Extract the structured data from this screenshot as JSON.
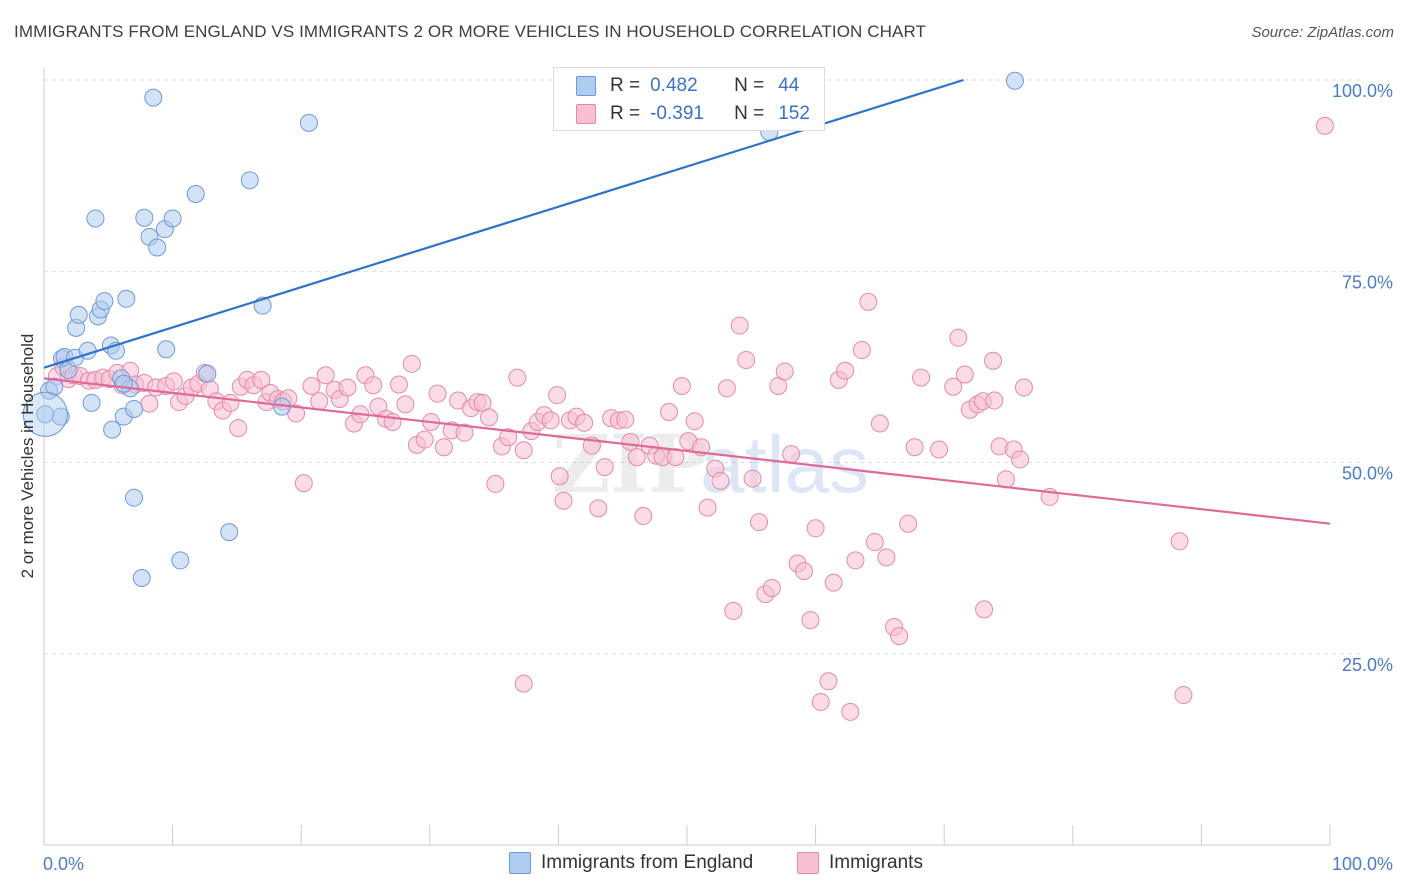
{
  "header": {
    "title": "IMMIGRANTS FROM ENGLAND VS IMMIGRANTS 2 OR MORE VEHICLES IN HOUSEHOLD CORRELATION CHART",
    "source": "Source: ZipAtlas.com"
  },
  "legend_top": {
    "rows": [
      {
        "r_label": "R =",
        "r_value": "0.482",
        "n_label": "N =",
        "n_value": "44"
      },
      {
        "r_label": "R =",
        "r_value": "-0.391",
        "n_label": "N =",
        "n_value": "152"
      }
    ]
  },
  "legend_bottom": {
    "series1": "Immigrants from England",
    "series2": "Immigrants"
  },
  "watermark": {
    "zip": "ZIP",
    "atlas": "atlas"
  },
  "colors": {
    "blue_fill": "#aecbf0",
    "blue_stroke": "#6f9ad8",
    "blue_line": "#2f72c8",
    "pink_fill": "#f7c0d2",
    "pink_stroke": "#e48aa9",
    "pink_line": "#e0699a",
    "grid": "#dddddd",
    "tick_text": "#4a7cc9"
  },
  "chart_data": {
    "type": "scatter",
    "title": "IMMIGRANTS FROM ENGLAND VS IMMIGRANTS 2 OR MORE VEHICLES IN HOUSEHOLD CORRELATION CHART",
    "xlabel": "",
    "ylabel": "2 or more Vehicles in Household",
    "xlim": [
      0,
      100
    ],
    "ylim": [
      0,
      100
    ],
    "x_tick_labels": [
      "0.0%",
      "100.0%"
    ],
    "y_tick_labels": [
      "25.0%",
      "50.0%",
      "75.0%",
      "100.0%"
    ],
    "y_ticks": [
      25,
      50,
      75,
      100
    ],
    "grid": true,
    "legend_placement": "bottom",
    "series": [
      {
        "name": "Immigrants from England",
        "points": [
          [
            0.4,
            59.4
          ],
          [
            0.8,
            59.9
          ],
          [
            1.3,
            56.0
          ],
          [
            1.4,
            63.6
          ],
          [
            1.6,
            63.8
          ],
          [
            1.9,
            62.1
          ],
          [
            2.4,
            63.7
          ],
          [
            2.5,
            67.6
          ],
          [
            2.7,
            69.3
          ],
          [
            3.4,
            64.6
          ],
          [
            3.7,
            57.8
          ],
          [
            4.0,
            81.9
          ],
          [
            4.2,
            69.1
          ],
          [
            4.4,
            70.0
          ],
          [
            4.7,
            71.1
          ],
          [
            5.2,
            65.3
          ],
          [
            5.3,
            54.3
          ],
          [
            5.6,
            64.6
          ],
          [
            6.0,
            61.0
          ],
          [
            6.2,
            56.0
          ],
          [
            6.4,
            71.4
          ],
          [
            6.7,
            59.7
          ],
          [
            7.0,
            57.0
          ],
          [
            7.0,
            45.4
          ],
          [
            7.6,
            34.9
          ],
          [
            7.8,
            82.0
          ],
          [
            8.2,
            79.5
          ],
          [
            8.5,
            97.7
          ],
          [
            8.8,
            78.1
          ],
          [
            9.4,
            80.5
          ],
          [
            9.5,
            64.8
          ],
          [
            10.0,
            81.9
          ],
          [
            10.6,
            37.2
          ],
          [
            11.8,
            85.1
          ],
          [
            12.7,
            61.6
          ],
          [
            14.4,
            40.9
          ],
          [
            16.0,
            86.9
          ],
          [
            17.0,
            70.5
          ],
          [
            18.5,
            57.3
          ],
          [
            20.6,
            94.4
          ],
          [
            56.4,
            93.2
          ],
          [
            75.5,
            99.9
          ],
          [
            0.1,
            56.3
          ],
          [
            6.2,
            60.3
          ]
        ]
      },
      {
        "name": "Immigrants",
        "points": [
          [
            1.0,
            61.3
          ],
          [
            1.5,
            62.5
          ],
          [
            1.9,
            60.9
          ],
          [
            2.3,
            61.4
          ],
          [
            2.8,
            61.3
          ],
          [
            3.5,
            60.7
          ],
          [
            4.0,
            60.8
          ],
          [
            4.6,
            61.1
          ],
          [
            5.1,
            60.9
          ],
          [
            5.7,
            61.7
          ],
          [
            6.1,
            60.1
          ],
          [
            6.7,
            62.0
          ],
          [
            7.1,
            60.2
          ],
          [
            7.8,
            60.4
          ],
          [
            8.2,
            57.7
          ],
          [
            8.7,
            59.8
          ],
          [
            9.5,
            60.0
          ],
          [
            10.1,
            60.6
          ],
          [
            10.5,
            57.9
          ],
          [
            11.0,
            58.7
          ],
          [
            11.5,
            59.8
          ],
          [
            12.0,
            60.3
          ],
          [
            12.5,
            61.7
          ],
          [
            12.9,
            59.6
          ],
          [
            13.4,
            58.0
          ],
          [
            13.9,
            56.8
          ],
          [
            14.5,
            57.8
          ],
          [
            15.1,
            54.5
          ],
          [
            15.3,
            59.9
          ],
          [
            15.8,
            60.8
          ],
          [
            16.3,
            60.1
          ],
          [
            16.9,
            60.8
          ],
          [
            17.3,
            57.9
          ],
          [
            17.6,
            59.1
          ],
          [
            18.2,
            58.3
          ],
          [
            18.6,
            58.0
          ],
          [
            19.0,
            58.4
          ],
          [
            19.6,
            56.4
          ],
          [
            20.2,
            47.3
          ],
          [
            20.8,
            60.0
          ],
          [
            21.4,
            58.0
          ],
          [
            21.9,
            61.4
          ],
          [
            22.6,
            59.5
          ],
          [
            23.0,
            58.3
          ],
          [
            23.6,
            59.8
          ],
          [
            24.1,
            55.1
          ],
          [
            24.6,
            56.3
          ],
          [
            25.0,
            61.4
          ],
          [
            25.6,
            60.1
          ],
          [
            26.0,
            57.3
          ],
          [
            26.6,
            55.7
          ],
          [
            27.1,
            55.3
          ],
          [
            27.6,
            60.2
          ],
          [
            28.1,
            57.6
          ],
          [
            28.6,
            62.9
          ],
          [
            29.0,
            52.3
          ],
          [
            29.6,
            53.0
          ],
          [
            30.1,
            55.3
          ],
          [
            30.6,
            59.0
          ],
          [
            31.1,
            52.0
          ],
          [
            31.7,
            54.2
          ],
          [
            32.2,
            58.1
          ],
          [
            32.7,
            53.9
          ],
          [
            33.2,
            57.1
          ],
          [
            33.7,
            57.9
          ],
          [
            34.1,
            57.8
          ],
          [
            34.6,
            55.9
          ],
          [
            35.1,
            47.2
          ],
          [
            35.6,
            52.1
          ],
          [
            36.1,
            53.3
          ],
          [
            36.8,
            61.1
          ],
          [
            37.3,
            51.6
          ],
          [
            37.9,
            54.1
          ],
          [
            38.4,
            55.3
          ],
          [
            38.9,
            56.2
          ],
          [
            39.4,
            55.5
          ],
          [
            39.9,
            58.8
          ],
          [
            40.1,
            48.2
          ],
          [
            40.4,
            45.0
          ],
          [
            40.9,
            55.5
          ],
          [
            41.4,
            56.0
          ],
          [
            42.0,
            55.2
          ],
          [
            42.6,
            52.2
          ],
          [
            43.1,
            44.0
          ],
          [
            43.6,
            49.4
          ],
          [
            44.1,
            55.8
          ],
          [
            44.7,
            55.5
          ],
          [
            45.2,
            55.6
          ],
          [
            45.6,
            52.7
          ],
          [
            46.1,
            50.7
          ],
          [
            46.6,
            43.0
          ],
          [
            47.1,
            52.2
          ],
          [
            47.6,
            50.9
          ],
          [
            48.1,
            50.7
          ],
          [
            48.6,
            56.6
          ],
          [
            49.1,
            50.7
          ],
          [
            49.6,
            60.0
          ],
          [
            50.1,
            52.8
          ],
          [
            50.6,
            55.4
          ],
          [
            51.1,
            52.0
          ],
          [
            51.6,
            44.1
          ],
          [
            52.2,
            49.2
          ],
          [
            52.6,
            47.6
          ],
          [
            53.1,
            59.7
          ],
          [
            53.6,
            30.6
          ],
          [
            54.1,
            67.9
          ],
          [
            54.6,
            63.4
          ],
          [
            55.1,
            47.9
          ],
          [
            55.6,
            42.2
          ],
          [
            56.1,
            32.8
          ],
          [
            56.6,
            33.6
          ],
          [
            57.1,
            60.0
          ],
          [
            57.6,
            61.9
          ],
          [
            58.1,
            51.1
          ],
          [
            58.6,
            36.8
          ],
          [
            59.1,
            35.8
          ],
          [
            59.6,
            29.4
          ],
          [
            60.0,
            41.4
          ],
          [
            60.4,
            18.7
          ],
          [
            61.0,
            21.4
          ],
          [
            61.4,
            34.3
          ],
          [
            61.8,
            60.8
          ],
          [
            62.3,
            62.0
          ],
          [
            62.7,
            17.4
          ],
          [
            63.1,
            37.2
          ],
          [
            63.6,
            64.7
          ],
          [
            64.1,
            71.0
          ],
          [
            64.6,
            39.6
          ],
          [
            65.0,
            55.1
          ],
          [
            65.5,
            37.6
          ],
          [
            66.1,
            28.5
          ],
          [
            66.5,
            27.3
          ],
          [
            67.2,
            42.0
          ],
          [
            67.7,
            52.0
          ],
          [
            68.2,
            61.1
          ],
          [
            69.6,
            51.7
          ],
          [
            70.7,
            59.9
          ],
          [
            71.1,
            66.3
          ],
          [
            71.6,
            61.5
          ],
          [
            72.0,
            56.9
          ],
          [
            72.6,
            57.6
          ],
          [
            73.0,
            58.0
          ],
          [
            73.9,
            58.1
          ],
          [
            73.8,
            63.3
          ],
          [
            74.3,
            52.1
          ],
          [
            74.8,
            47.8
          ],
          [
            75.4,
            51.7
          ],
          [
            75.9,
            50.4
          ],
          [
            76.2,
            59.8
          ],
          [
            78.2,
            45.5
          ],
          [
            88.3,
            39.7
          ],
          [
            88.6,
            19.6
          ],
          [
            99.6,
            94.0
          ],
          [
            73.1,
            30.8
          ],
          [
            37.3,
            21.1
          ]
        ]
      }
    ],
    "trend_lines": [
      {
        "series": "Immigrants from England",
        "x": [
          0,
          71.5
        ],
        "y": [
          62.4,
          100
        ]
      },
      {
        "series": "Immigrants",
        "x": [
          0,
          100
        ],
        "y": [
          61.0,
          42.0
        ]
      }
    ]
  }
}
